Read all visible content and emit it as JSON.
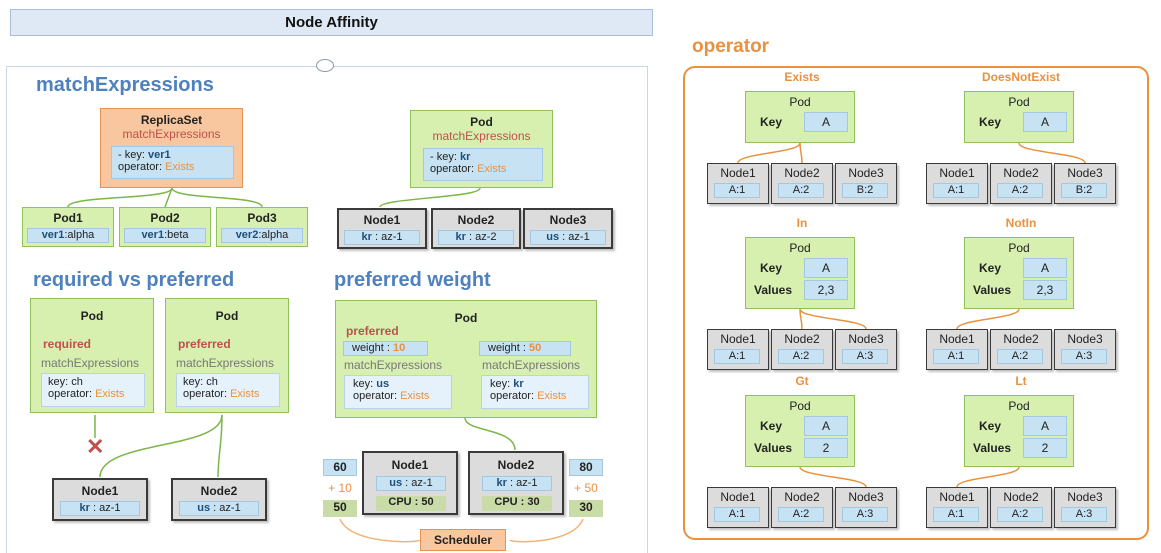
{
  "header": {
    "title": "Node Affinity"
  },
  "left": {
    "match": {
      "title": "matchExpressions",
      "replicaset": {
        "title": "ReplicaSet",
        "sub": "matchExpressions",
        "key_label": "- key: ",
        "key_value": "ver1",
        "op_label": "operator: ",
        "op_value": "Exists"
      },
      "pods": [
        {
          "name": "Pod1",
          "lk": "ver1",
          "lv": ":alpha"
        },
        {
          "name": "Pod2",
          "lk": "ver1",
          "lv": ":beta"
        },
        {
          "name": "Pod3",
          "lk": "ver2",
          "lv": ":alpha"
        }
      ],
      "pod": {
        "title": "Pod",
        "sub": "matchExpressions",
        "key_label": "- key: ",
        "key_value": "kr",
        "op_label": "operator: ",
        "op_value": "Exists"
      },
      "nodes": [
        {
          "name": "Node1",
          "lk": "kr",
          "lv": " : az-1"
        },
        {
          "name": "Node2",
          "lk": "kr",
          "lv": " : az-2"
        },
        {
          "name": "Node3",
          "lk": "us",
          "lv": " : az-1"
        }
      ]
    },
    "reqpref": {
      "title": "required vs preferred",
      "pod_a": {
        "title": "Pod",
        "mode": "required",
        "sub": "matchExpressions",
        "key": "key: ch",
        "op_label": "operator: ",
        "op_value": "Exists"
      },
      "pod_b": {
        "title": "Pod",
        "mode": "preferred",
        "sub": "matchExpressions",
        "key": "key: ch",
        "op_label": "operator: ",
        "op_value": "Exists"
      },
      "x_mark": "✕",
      "nodes": [
        {
          "name": "Node1",
          "lk": "kr",
          "lv": " : az-1"
        },
        {
          "name": "Node2",
          "lk": "us",
          "lv": " : az-1"
        }
      ]
    },
    "weight": {
      "title": "preferred weight",
      "pod": {
        "title": "Pod",
        "mode": "preferred",
        "w1_label": "weight : ",
        "w1_value": "10",
        "sub1": "matchExpressions",
        "k1_label": "key: ",
        "k1_value": "us",
        "op1_label": "operator: ",
        "op1_value": "Exists",
        "w2_label": "weight : ",
        "w2_value": "50",
        "sub2": "matchExpressions",
        "k2_label": "key: ",
        "k2_value": "kr",
        "op2_label": "operator: ",
        "op2_value": "Exists"
      },
      "node1": {
        "name": "Node1",
        "lk": "us",
        "lv": " : az-1",
        "cpu_label": "CPU : ",
        "cpu_value": "50"
      },
      "node2": {
        "name": "Node2",
        "lk": "kr",
        "lv": " : az-1",
        "cpu_label": "CPU : ",
        "cpu_value": "30"
      },
      "score1": {
        "total": "60",
        "plus": "+ 10",
        "base": "50"
      },
      "score2": {
        "total": "80",
        "plus": "+ 50",
        "base": "30"
      },
      "scheduler": "Scheduler"
    }
  },
  "operator": {
    "title": "operator",
    "node_labels": [
      "Node1",
      "Node2",
      "Node3"
    ],
    "pod_label": "Pod",
    "key_label": "Key",
    "values_label": "Values",
    "groups": [
      {
        "name": "Exists",
        "key": "A",
        "values": "",
        "nodes": [
          "A:1",
          "A:2",
          "B:2"
        ]
      },
      {
        "name": "DoesNotExist",
        "key": "A",
        "values": "",
        "nodes": [
          "A:1",
          "A:2",
          "B:2"
        ]
      },
      {
        "name": "In",
        "key": "A",
        "values": "2,3",
        "nodes": [
          "A:1",
          "A:2",
          "A:3"
        ]
      },
      {
        "name": "NotIn",
        "key": "A",
        "values": "2,3",
        "nodes": [
          "A:1",
          "A:2",
          "A:3"
        ]
      },
      {
        "name": "Gt",
        "key": "A",
        "values": "2",
        "nodes": [
          "A:1",
          "A:2",
          "A:3"
        ]
      },
      {
        "name": "Lt",
        "key": "A",
        "values": "2",
        "nodes": [
          "A:1",
          "A:2",
          "A:3"
        ]
      }
    ]
  }
}
